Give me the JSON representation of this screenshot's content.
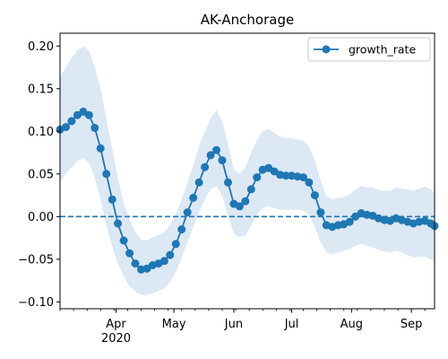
{
  "chart_data": {
    "type": "line",
    "title": "AK-Anchorage",
    "xlabel": "",
    "ylabel": "",
    "x_ticks": [
      "Apr\n2020",
      "May",
      "Jun",
      "Jul",
      "Aug",
      "Sep"
    ],
    "x_tick_dates": [
      "2020-04-01",
      "2020-05-01",
      "2020-06-01",
      "2020-07-01",
      "2020-08-01",
      "2020-09-01"
    ],
    "x_range": [
      "2020-03-03",
      "2020-09-13"
    ],
    "y_ticks": [
      -0.1,
      -0.05,
      0.0,
      0.05,
      0.1,
      0.15,
      0.2
    ],
    "y_tick_labels": [
      "−0.10",
      "−0.05",
      "0.00",
      "0.05",
      "0.10",
      "0.15",
      "0.20"
    ],
    "ylim": [
      -0.108,
      0.215
    ],
    "reference_line": {
      "y": 0.0,
      "style": "dashed"
    },
    "legend": {
      "position": "top-right"
    },
    "colors": {
      "series": "#1f77b4",
      "band": "#dce8f4"
    },
    "series": [
      {
        "name": "growth_rate",
        "x": [
          "2020-03-03",
          "2020-03-06",
          "2020-03-09",
          "2020-03-12",
          "2020-03-15",
          "2020-03-18",
          "2020-03-21",
          "2020-03-24",
          "2020-03-27",
          "2020-03-30",
          "2020-04-02",
          "2020-04-05",
          "2020-04-08",
          "2020-04-11",
          "2020-04-14",
          "2020-04-17",
          "2020-04-20",
          "2020-04-23",
          "2020-04-26",
          "2020-04-29",
          "2020-05-02",
          "2020-05-05",
          "2020-05-08",
          "2020-05-11",
          "2020-05-14",
          "2020-05-17",
          "2020-05-20",
          "2020-05-23",
          "2020-05-26",
          "2020-05-29",
          "2020-06-01",
          "2020-06-04",
          "2020-06-07",
          "2020-06-10",
          "2020-06-13",
          "2020-06-16",
          "2020-06-19",
          "2020-06-22",
          "2020-06-25",
          "2020-06-28",
          "2020-07-01",
          "2020-07-04",
          "2020-07-07",
          "2020-07-10",
          "2020-07-13",
          "2020-07-16",
          "2020-07-19",
          "2020-07-22",
          "2020-07-25",
          "2020-07-28",
          "2020-07-31",
          "2020-08-03",
          "2020-08-06",
          "2020-08-09",
          "2020-08-12",
          "2020-08-15",
          "2020-08-18",
          "2020-08-21",
          "2020-08-24",
          "2020-08-27",
          "2020-08-30",
          "2020-09-02",
          "2020-09-05",
          "2020-09-08",
          "2020-09-11",
          "2020-09-13"
        ],
        "y": [
          0.102,
          0.105,
          0.112,
          0.119,
          0.123,
          0.119,
          0.104,
          0.08,
          0.05,
          0.02,
          -0.008,
          -0.028,
          -0.043,
          -0.055,
          -0.062,
          -0.061,
          -0.057,
          -0.055,
          -0.052,
          -0.045,
          -0.032,
          -0.015,
          0.005,
          0.022,
          0.04,
          0.058,
          0.072,
          0.078,
          0.066,
          0.04,
          0.015,
          0.012,
          0.018,
          0.032,
          0.046,
          0.055,
          0.057,
          0.053,
          0.049,
          0.048,
          0.048,
          0.047,
          0.046,
          0.04,
          0.025,
          0.005,
          -0.01,
          -0.012,
          -0.01,
          -0.009,
          -0.006,
          0.0,
          0.004,
          0.002,
          0.001,
          -0.002,
          -0.004,
          -0.005,
          -0.002,
          -0.004,
          -0.006,
          -0.008,
          -0.006,
          -0.005,
          -0.008,
          -0.011
        ],
        "lower": [
          0.04,
          0.05,
          0.058,
          0.065,
          0.068,
          0.063,
          0.045,
          0.02,
          -0.01,
          -0.035,
          -0.055,
          -0.07,
          -0.082,
          -0.088,
          -0.092,
          -0.092,
          -0.09,
          -0.087,
          -0.084,
          -0.077,
          -0.065,
          -0.048,
          -0.03,
          -0.012,
          0.005,
          0.02,
          0.032,
          0.036,
          0.024,
          0.0,
          -0.02,
          -0.024,
          -0.022,
          -0.01,
          0.002,
          0.01,
          0.012,
          0.01,
          0.008,
          0.008,
          0.008,
          0.008,
          0.007,
          0.002,
          -0.012,
          -0.03,
          -0.042,
          -0.044,
          -0.042,
          -0.04,
          -0.038,
          -0.034,
          -0.032,
          -0.034,
          -0.036,
          -0.039,
          -0.041,
          -0.042,
          -0.04,
          -0.042,
          -0.045,
          -0.048,
          -0.047,
          -0.047,
          -0.05,
          -0.054
        ],
        "upper": [
          0.163,
          0.175,
          0.186,
          0.195,
          0.2,
          0.195,
          0.175,
          0.15,
          0.115,
          0.08,
          0.045,
          0.015,
          -0.003,
          -0.018,
          -0.027,
          -0.028,
          -0.024,
          -0.022,
          -0.018,
          -0.01,
          0.003,
          0.02,
          0.04,
          0.06,
          0.082,
          0.1,
          0.115,
          0.125,
          0.112,
          0.085,
          0.055,
          0.05,
          0.058,
          0.075,
          0.09,
          0.1,
          0.103,
          0.098,
          0.094,
          0.092,
          0.092,
          0.09,
          0.089,
          0.082,
          0.066,
          0.042,
          0.024,
          0.02,
          0.022,
          0.023,
          0.026,
          0.032,
          0.036,
          0.034,
          0.034,
          0.031,
          0.03,
          0.03,
          0.034,
          0.033,
          0.032,
          0.03,
          0.033,
          0.035,
          0.032,
          0.028
        ]
      }
    ]
  }
}
